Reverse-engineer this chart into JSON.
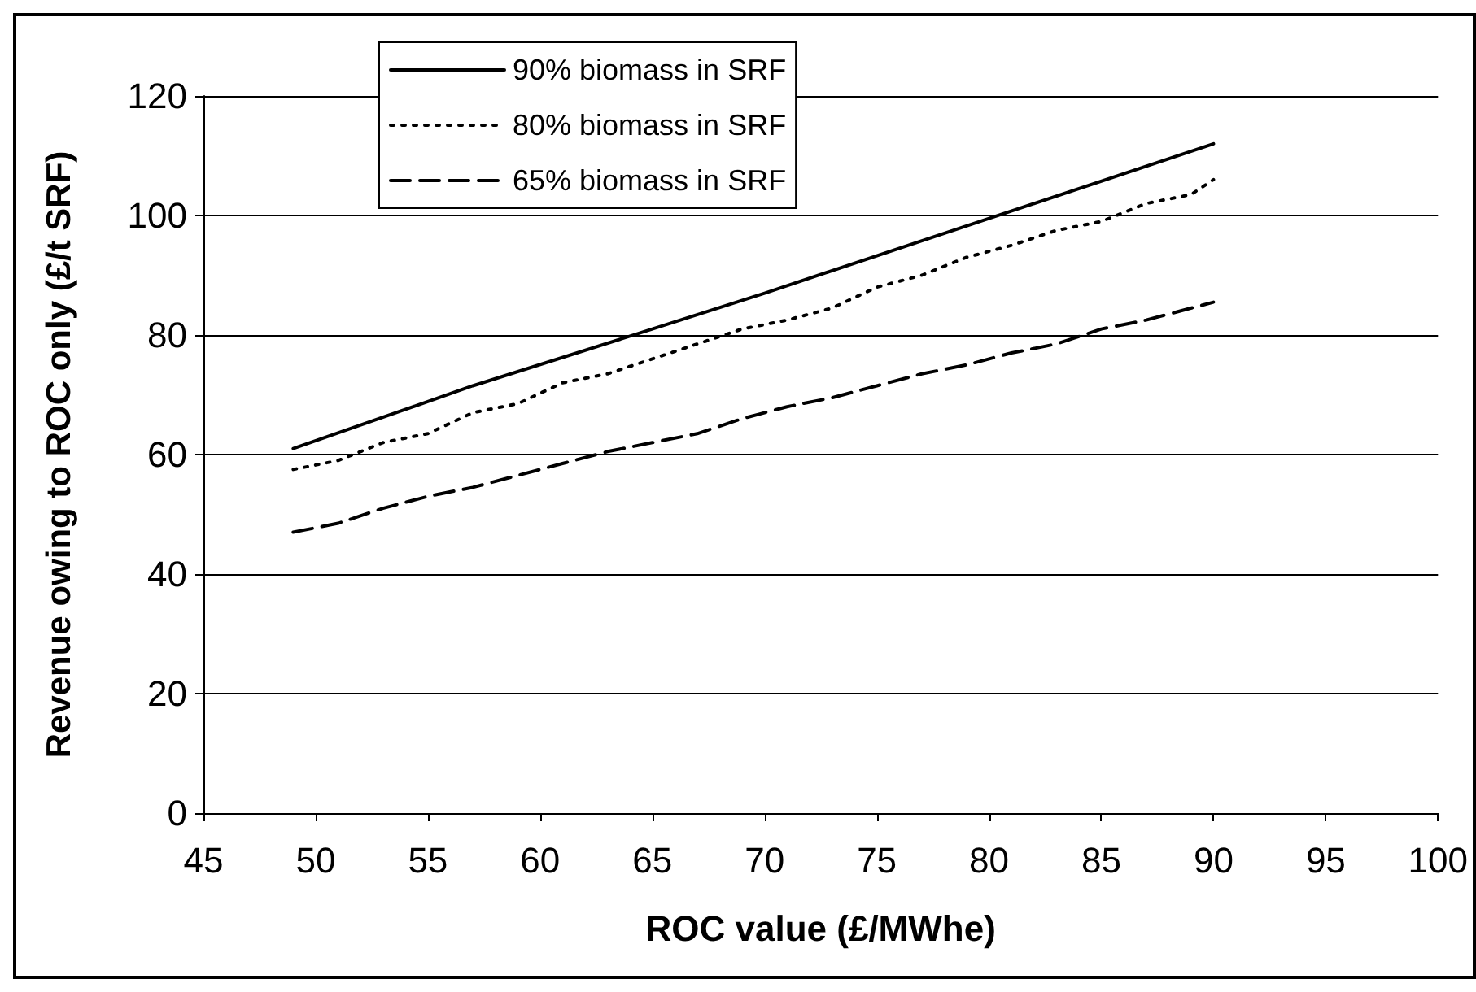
{
  "chart_data": {
    "type": "line",
    "xlabel": "ROC value (£/MWhe)",
    "ylabel": "Revenue owing to ROC only (£/t SRF)",
    "xlim": [
      45,
      100
    ],
    "xticks": [
      45,
      50,
      55,
      60,
      65,
      70,
      75,
      80,
      85,
      90,
      95,
      100
    ],
    "ylim": [
      0,
      120
    ],
    "yticks": [
      0,
      20,
      40,
      60,
      80,
      100,
      120
    ],
    "grid": "y",
    "legend": "top left",
    "marker": "none",
    "series": [
      {
        "name": "90% biomass in SRF",
        "color": "#000000",
        "line_style": "solid",
        "x": [
          49,
          57,
          65,
          70,
          80,
          90
        ],
        "values": [
          61,
          71.5,
          81,
          87,
          99.5,
          112
        ]
      },
      {
        "name": "80% biomass in SRF",
        "color": "#000000",
        "line_style": "dotted",
        "x": [
          49,
          51,
          53,
          55,
          57,
          59,
          61,
          63,
          65,
          67,
          69,
          71,
          73,
          75,
          77,
          79,
          81,
          83,
          85,
          87,
          89,
          90
        ],
        "values": [
          57.5,
          59,
          62,
          63.5,
          67,
          68.5,
          72,
          73.5,
          76,
          78.5,
          81,
          82.5,
          84.5,
          88,
          90,
          93,
          95,
          97.5,
          99,
          102,
          103.5,
          106
        ]
      },
      {
        "name": "65% biomass in SRF",
        "color": "#000000",
        "line_style": "dashed",
        "x": [
          49,
          51,
          53,
          55,
          57,
          59,
          61,
          63,
          65,
          67,
          69,
          71,
          73,
          75,
          77,
          79,
          81,
          83,
          85,
          87,
          90
        ],
        "values": [
          47,
          48.5,
          51,
          53,
          54.5,
          56.5,
          58.5,
          60.5,
          62,
          63.5,
          66,
          68,
          69.5,
          71.5,
          73.5,
          75,
          77,
          78.5,
          81,
          82.5,
          85.5
        ]
      }
    ]
  }
}
